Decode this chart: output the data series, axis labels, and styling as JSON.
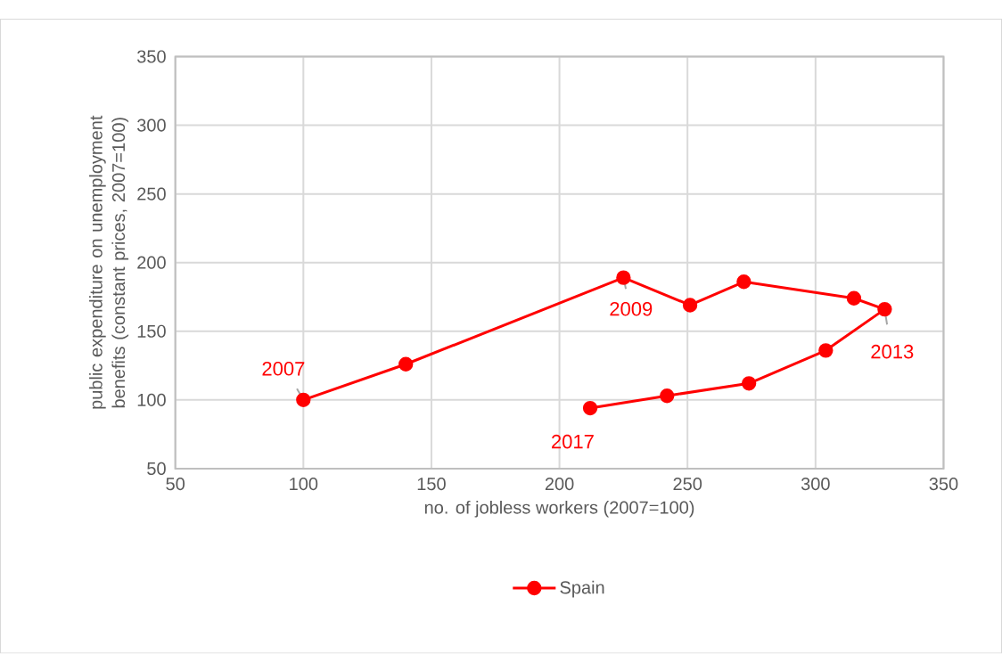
{
  "chart_data": {
    "type": "line",
    "xlabel": "no. of jobless workers (2007=100)",
    "ylabel": "public expenditure on unemployment benefits (constant prices, 2007=100)",
    "series": [
      {
        "name": "Spain",
        "color": "#ff0000",
        "x": [
          100,
          140,
          225,
          251,
          272,
          315,
          327,
          304,
          274,
          242,
          212
        ],
        "values": [
          100,
          126,
          189,
          169,
          186,
          174,
          166,
          136,
          112,
          103,
          94
        ]
      }
    ],
    "xlim": [
      50,
      350
    ],
    "xticks": [
      50,
      100,
      150,
      200,
      250,
      300,
      350
    ],
    "ylim": [
      50,
      350
    ],
    "yticks": [
      50,
      100,
      150,
      200,
      250,
      300,
      350
    ],
    "grid": true,
    "legend": "bottom",
    "marker": "circle",
    "line_style": "solid",
    "annotations": [
      {
        "text": "2007",
        "x": 100,
        "y": 100
      },
      {
        "text": "2009",
        "x": 225,
        "y": 189
      },
      {
        "text": "2013",
        "x": 327,
        "y": 166
      },
      {
        "text": "2017",
        "x": 212,
        "y": 94
      }
    ]
  }
}
